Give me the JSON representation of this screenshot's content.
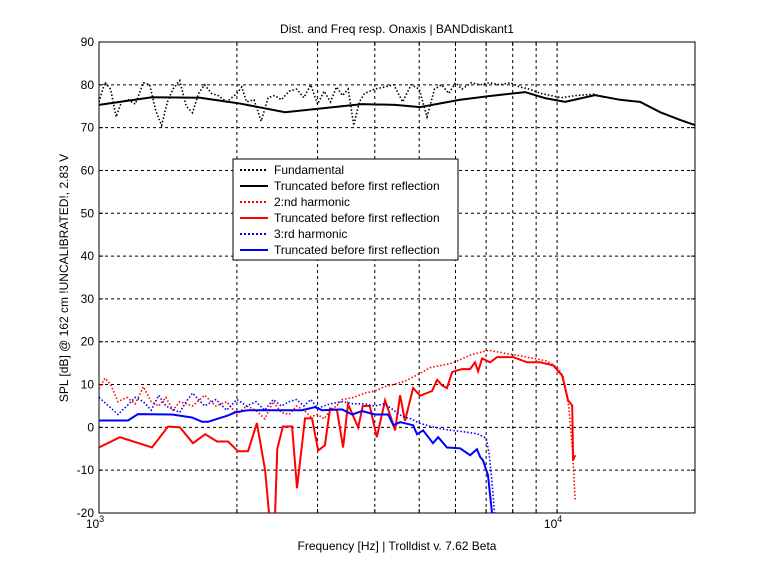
{
  "chart_data": {
    "type": "line",
    "title": "Dist. and Freq resp. Onaxis | BANDdiskant1",
    "xlabel": "Frequency [Hz] | Trolldist v. 7.62 Beta",
    "ylabel": "SPL [dB] @ 162 cm !UNCALIBRATED!, 2.83 V",
    "xscale": "log",
    "xlim": [
      1000,
      20000
    ],
    "ylim": [
      -20,
      90
    ],
    "grid": true,
    "legend_position": "center-left",
    "xtick_labels": [
      {
        "base": "10",
        "exp": "3",
        "value": 1000
      },
      {
        "base": "10",
        "exp": "4",
        "value": 10000
      }
    ],
    "yticks": [
      "-20",
      "-10",
      "0",
      "10",
      "20",
      "30",
      "40",
      "50",
      "60",
      "70",
      "80",
      "90"
    ],
    "series": [
      {
        "name": "Fundamental",
        "color": "#000000",
        "style": "dotted",
        "x": [
          1000,
          1030,
          1060,
          1090,
          1120,
          1160,
          1200,
          1250,
          1290,
          1330,
          1370,
          1410,
          1450,
          1500,
          1550,
          1600,
          1650,
          1700,
          1760,
          1820,
          1900,
          2000,
          2050,
          2100,
          2180,
          2260,
          2340,
          2420,
          2500,
          2600,
          2700,
          2800,
          2900,
          3000,
          3100,
          3200,
          3300,
          3400,
          3500,
          3600,
          3700,
          3800,
          3900,
          4000,
          4200,
          4400,
          4600,
          4800,
          5000,
          5200,
          5400,
          5600,
          5800,
          6000,
          6200,
          6500,
          6800,
          7100,
          7500,
          7900,
          8300,
          8700,
          9200,
          9700,
          10200,
          11000,
          12000,
          12800
        ],
        "y": [
          76,
          80.6,
          79,
          72.5,
          76,
          76.5,
          75.5,
          80.5,
          80,
          74,
          70.5,
          76,
          79,
          81,
          75,
          73.5,
          78,
          80,
          78,
          77.5,
          76,
          78,
          79.5,
          76,
          76.5,
          71.5,
          77,
          77.5,
          76.5,
          78.5,
          79,
          77,
          80,
          75.5,
          78.5,
          76,
          79.5,
          77.5,
          79,
          70.5,
          76,
          78,
          78.5,
          79,
          79.5,
          80,
          76,
          80,
          79,
          72.5,
          79,
          80,
          78,
          80.5,
          79,
          80.5,
          80,
          80.5,
          80,
          80.5,
          79.5,
          79,
          78,
          77.5,
          77,
          77.5,
          77.8,
          77
        ]
      },
      {
        "name": "Truncated before first reflection",
        "color": "#000000",
        "style": "solid",
        "x": [
          1000,
          1305,
          1662,
          2011,
          2547,
          3753,
          4430,
          5022,
          6140,
          7140,
          8515,
          9410,
          10410,
          12100,
          13730,
          15180,
          16780,
          18560,
          20000
        ],
        "y": [
          75.3,
          77.1,
          77,
          75.7,
          73.6,
          75.5,
          75.3,
          74.8,
          76.5,
          77.4,
          78.3,
          76.9,
          76,
          77.6,
          76.5,
          76,
          73.6,
          71.8,
          70.6
        ]
      },
      {
        "name": "2:nd harmonic",
        "color": "#ff0000",
        "style": "dotted",
        "x": [
          1000,
          1030,
          1060,
          1100,
          1150,
          1200,
          1250,
          1300,
          1350,
          1400,
          1450,
          1500,
          1600,
          1700,
          1800,
          1900,
          2000,
          2100,
          2200,
          2300,
          2400,
          2500,
          2600,
          2700,
          2800,
          2900,
          3000,
          3100,
          3200,
          3300,
          3400,
          3600,
          3800,
          4000,
          4200,
          4400,
          4700,
          5000,
          5300,
          5600,
          5900,
          6200,
          6500,
          6800,
          7100,
          7500,
          8000,
          8500,
          9000,
          9500,
          10000,
          10300,
          10600,
          10800,
          10950
        ],
        "y": [
          9,
          11.5,
          10,
          6,
          7,
          5.5,
          9.5,
          6,
          5,
          7,
          4,
          6,
          5,
          7.5,
          5,
          6,
          3,
          5,
          4,
          2,
          6,
          3.5,
          3,
          5,
          4,
          2.5,
          3,
          2,
          4,
          5,
          6.5,
          7,
          8,
          8.5,
          9.5,
          10,
          11,
          12.5,
          14,
          14.5,
          15,
          16,
          17,
          17.5,
          18,
          17.5,
          17,
          16.5,
          16,
          15.5,
          14,
          12,
          5,
          -5,
          -17
        ]
      },
      {
        "name": "Truncated before first reflection",
        "color": "#ff0000",
        "style": "solid",
        "x": [
          1000,
          1111,
          1305,
          1415,
          1502,
          1604,
          1705,
          1810,
          1913,
          2011,
          2115,
          2212,
          2304,
          2360,
          2420,
          2450,
          2520,
          2640,
          2706,
          2816,
          2917,
          3010,
          3113,
          3193,
          3308,
          3410,
          3495,
          3680,
          3765,
          3900,
          4040,
          4212,
          4362,
          4430,
          4542,
          4656,
          4849,
          5022,
          5334,
          5470,
          5610,
          5750,
          5900,
          6050,
          6203,
          6457,
          6620,
          6723,
          6860,
          7140,
          7395,
          8015,
          8600,
          9180,
          9800,
          10260,
          10570,
          10790,
          10840,
          10950
        ],
        "y": [
          -4.7,
          -2.3,
          -4.7,
          0.2,
          0,
          -3.7,
          -1.6,
          -3.3,
          -3.3,
          -5.6,
          -5.6,
          1,
          -10,
          -22,
          -22,
          -5,
          0.2,
          0.2,
          -14.2,
          2.1,
          2.1,
          -5.4,
          -4.2,
          4.4,
          4,
          -4.7,
          5.4,
          0,
          5,
          5,
          -2.3,
          6.3,
          1.6,
          -0.7,
          7.5,
          1.5,
          9.2,
          7.4,
          8.5,
          11.1,
          9.8,
          9.2,
          12.9,
          13.3,
          13.6,
          13.6,
          15.2,
          13.1,
          16.1,
          15.2,
          16.4,
          16.4,
          15.2,
          15.2,
          14.5,
          12.1,
          6.3,
          5.1,
          -7.7,
          -6.5
        ]
      },
      {
        "name": "3:rd harmonic",
        "color": "#0000ff",
        "style": "dotted",
        "x": [
          1000,
          1050,
          1100,
          1150,
          1200,
          1250,
          1300,
          1350,
          1400,
          1500,
          1550,
          1600,
          1700,
          1800,
          1900,
          2000,
          2100,
          2200,
          2300,
          2400,
          2500,
          2600,
          2700,
          2800,
          2900,
          3000,
          3200,
          3400,
          3600,
          3800,
          4000,
          4200,
          4400,
          4600,
          4800,
          5000,
          5300,
          5700,
          6200,
          6700,
          7000,
          7100,
          7200,
          7300
        ],
        "y": [
          7,
          5,
          3,
          5,
          7,
          6,
          4,
          7.5,
          5,
          3.5,
          6,
          8,
          5,
          6.5,
          4,
          6.5,
          5,
          6,
          4,
          6.5,
          5,
          6,
          6.5,
          5,
          6.5,
          4.5,
          5.5,
          6,
          5.5,
          5.5,
          5,
          5.5,
          4,
          2.5,
          2,
          1,
          0.2,
          -0.5,
          -1,
          -1.5,
          -2.5,
          -6,
          -12,
          -20
        ]
      },
      {
        "name": "Truncated before first reflection",
        "color": "#0000ff",
        "style": "solid",
        "x": [
          1000,
          1157,
          1216,
          1443,
          1596,
          1679,
          1730,
          1913,
          1981,
          2115,
          2773,
          2962,
          3069,
          3393,
          3570,
          3753,
          4006,
          4276,
          4390,
          4542,
          4849,
          4944,
          5098,
          5360,
          5500,
          5750,
          6140,
          6457,
          6687,
          6792,
          6890,
          7065,
          7210
        ],
        "y": [
          1.6,
          1.6,
          3.1,
          3,
          2.3,
          1.3,
          1.3,
          2.8,
          3.5,
          4,
          4,
          4.7,
          4,
          4.2,
          3,
          3.8,
          3,
          3,
          0.5,
          1.2,
          0.5,
          -1.6,
          -0.7,
          -3.7,
          -2.3,
          -4.7,
          -4.9,
          -6.5,
          -5.1,
          -6.9,
          -7.7,
          -11.2,
          -20
        ]
      }
    ]
  }
}
